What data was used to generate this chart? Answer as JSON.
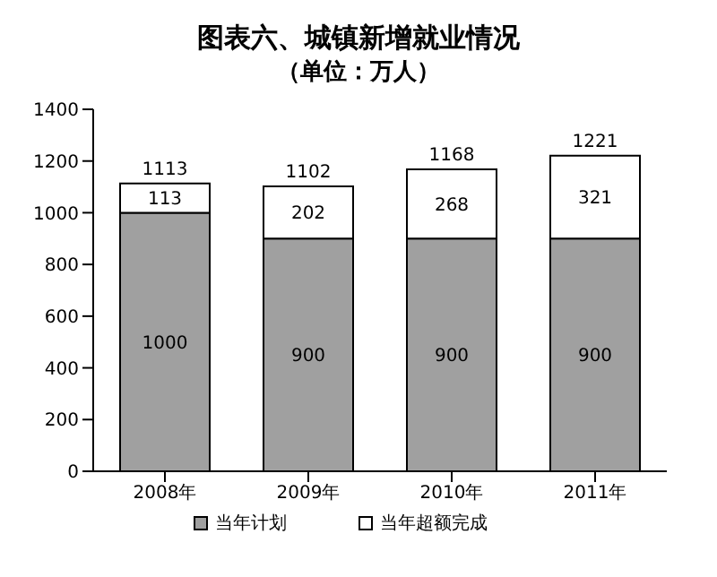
{
  "chart_data": {
    "type": "bar",
    "title": "图表六、城镇新增就业情况",
    "subtitle": "（单位：万人）",
    "categories": [
      "2008年",
      "2009年",
      "2010年",
      "2011年"
    ],
    "series": [
      {
        "name": "当年计划",
        "color": "#a0a0a0",
        "values": [
          1000,
          900,
          900,
          900
        ]
      },
      {
        "name": "当年超额完成",
        "color": "#ffffff",
        "values": [
          113,
          202,
          268,
          321
        ]
      }
    ],
    "stacked": true,
    "totals": [
      "1113",
      "1102",
      "1168",
      "1221"
    ],
    "data_labels": true,
    "ylim": [
      0,
      1400
    ],
    "yticks": [
      0,
      200,
      400,
      600,
      800,
      1000,
      1200,
      1400
    ],
    "grid": false,
    "legend": "bottom"
  }
}
